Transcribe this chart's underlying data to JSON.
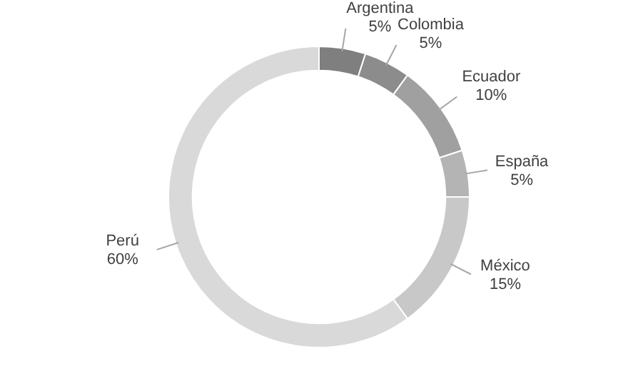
{
  "chart_data": {
    "type": "donut",
    "categories": [
      "Argentina",
      "Colombia",
      "Ecuador",
      "España",
      "México",
      "Perú"
    ],
    "values": [
      5,
      5,
      10,
      5,
      15,
      60
    ],
    "value_labels": [
      "5%",
      "5%",
      "10%",
      "5%",
      "15%",
      "60%"
    ],
    "colors": [
      "#7f7f7f",
      "#8c8c8c",
      "#a0a0a0",
      "#b4b4b4",
      "#c8c8c8",
      "#d9d9d9"
    ],
    "legend": false
  }
}
